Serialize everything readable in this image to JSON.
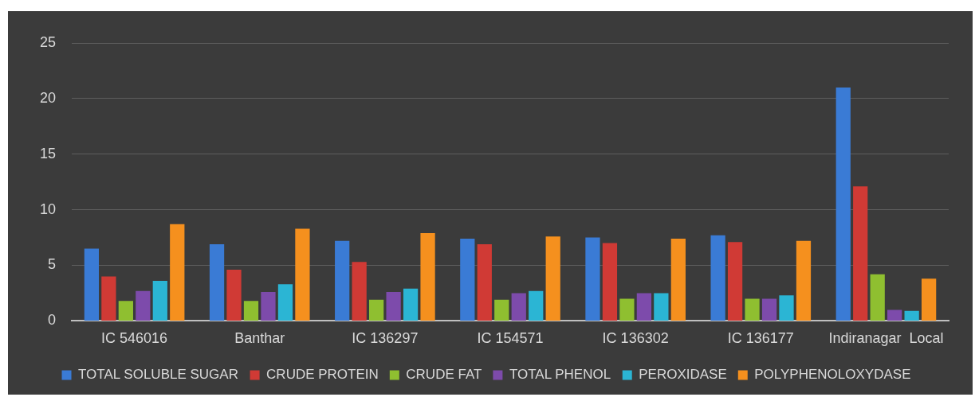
{
  "chart_data": {
    "type": "bar",
    "categories": [
      "IC 546016",
      "Banthar",
      "IC 136297",
      "IC 154571",
      "IC 136302",
      "IC 136177",
      "Indiranagar  Local"
    ],
    "series": [
      {
        "name": "TOTAL SOLUBLE SUGAR",
        "color": "#3a7bd5",
        "values": [
          6.5,
          6.9,
          7.2,
          7.4,
          7.5,
          7.7,
          21.0
        ]
      },
      {
        "name": "CRUDE PROTEIN",
        "color": "#d03a35",
        "values": [
          4.0,
          4.6,
          5.3,
          6.9,
          7.0,
          7.1,
          12.1
        ]
      },
      {
        "name": "CRUDE FAT",
        "color": "#8fbf30",
        "values": [
          1.8,
          1.8,
          1.9,
          1.9,
          2.0,
          2.0,
          4.2
        ]
      },
      {
        "name": "TOTAL PHENOL",
        "color": "#7d4bab",
        "values": [
          2.7,
          2.6,
          2.6,
          2.5,
          2.5,
          2.0,
          1.0
        ]
      },
      {
        "name": "PEROXIDASE",
        "color": "#2bb5d4",
        "values": [
          3.6,
          3.3,
          2.9,
          2.7,
          2.5,
          2.3,
          0.9
        ]
      },
      {
        "name": "POLYPHENOLOXYDASE",
        "color": "#f5901e",
        "values": [
          8.7,
          8.3,
          7.9,
          7.6,
          7.4,
          7.2,
          3.8
        ]
      }
    ],
    "ylim": [
      0,
      25
    ],
    "yticks": [
      0,
      5,
      10,
      15,
      20,
      25
    ],
    "grid": "y",
    "legend": "bottom"
  }
}
